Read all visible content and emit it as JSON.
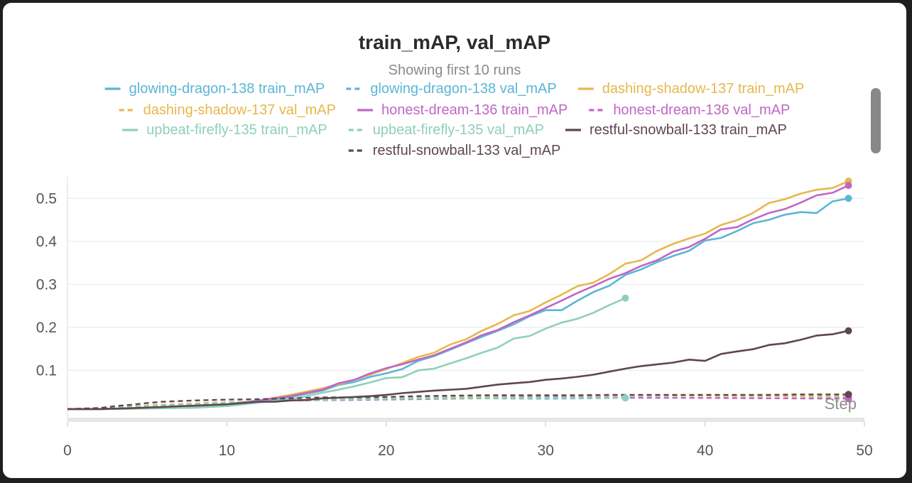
{
  "window": {
    "title": "train_mAP, val_mAP",
    "subtitle": "Showing first 10 runs"
  },
  "chart_data": {
    "type": "line",
    "title": "train_mAP, val_mAP",
    "subtitle": "Showing first 10 runs",
    "xlabel": "Step",
    "ylabel": "",
    "xlim": [
      0,
      50
    ],
    "ylim": [
      -0.01,
      0.55
    ],
    "x_ticks": [
      "0",
      "10",
      "20",
      "30",
      "40",
      "50"
    ],
    "y_ticks": [
      "0.1",
      "0.2",
      "0.3",
      "0.4",
      "0.5"
    ],
    "grid": true,
    "legend_position": "top",
    "series": [
      {
        "name": "glowing-dragon-138 train_mAP",
        "color": "#5bb6d6",
        "dash": false,
        "points": [
          [
            0,
            0.01
          ],
          [
            2,
            0.01
          ],
          [
            4,
            0.011
          ],
          [
            6,
            0.012
          ],
          [
            8,
            0.014
          ],
          [
            10,
            0.018
          ],
          [
            12,
            0.026
          ],
          [
            14,
            0.038
          ],
          [
            16,
            0.053
          ],
          [
            17,
            0.066
          ],
          [
            18,
            0.073
          ],
          [
            19,
            0.085
          ],
          [
            20,
            0.093
          ],
          [
            21,
            0.103
          ],
          [
            22,
            0.122
          ],
          [
            23,
            0.133
          ],
          [
            24,
            0.148
          ],
          [
            25,
            0.163
          ],
          [
            26,
            0.178
          ],
          [
            27,
            0.192
          ],
          [
            28,
            0.207
          ],
          [
            29,
            0.226
          ],
          [
            30,
            0.24
          ],
          [
            31,
            0.24
          ],
          [
            32,
            0.262
          ],
          [
            33,
            0.282
          ],
          [
            34,
            0.297
          ],
          [
            35,
            0.322
          ],
          [
            36,
            0.335
          ],
          [
            37,
            0.352
          ],
          [
            38,
            0.366
          ],
          [
            39,
            0.378
          ],
          [
            40,
            0.402
          ],
          [
            41,
            0.408
          ],
          [
            42,
            0.424
          ],
          [
            43,
            0.442
          ],
          [
            44,
            0.45
          ],
          [
            45,
            0.462
          ],
          [
            46,
            0.468
          ],
          [
            47,
            0.466
          ],
          [
            48,
            0.493
          ],
          [
            49,
            0.5
          ]
        ]
      },
      {
        "name": "glowing-dragon-138 val_mAP",
        "color": "#5bb6d6",
        "dash": true,
        "points": [
          [
            0,
            0.01
          ],
          [
            3,
            0.014
          ],
          [
            6,
            0.018
          ],
          [
            10,
            0.025
          ],
          [
            14,
            0.03
          ],
          [
            18,
            0.031
          ],
          [
            22,
            0.033
          ],
          [
            26,
            0.035
          ],
          [
            30,
            0.034
          ],
          [
            35,
            0.036
          ],
          [
            40,
            0.036
          ],
          [
            45,
            0.035
          ],
          [
            49,
            0.036
          ]
        ]
      },
      {
        "name": "dashing-shadow-137 train_mAP",
        "color": "#e6b84d",
        "dash": false,
        "points": [
          [
            0,
            0.01
          ],
          [
            2,
            0.01
          ],
          [
            4,
            0.012
          ],
          [
            6,
            0.014
          ],
          [
            8,
            0.016
          ],
          [
            10,
            0.02
          ],
          [
            12,
            0.03
          ],
          [
            14,
            0.043
          ],
          [
            16,
            0.058
          ],
          [
            17,
            0.068
          ],
          [
            18,
            0.078
          ],
          [
            19,
            0.09
          ],
          [
            20,
            0.103
          ],
          [
            21,
            0.117
          ],
          [
            22,
            0.131
          ],
          [
            23,
            0.141
          ],
          [
            24,
            0.16
          ],
          [
            25,
            0.172
          ],
          [
            26,
            0.192
          ],
          [
            27,
            0.208
          ],
          [
            28,
            0.228
          ],
          [
            29,
            0.238
          ],
          [
            30,
            0.258
          ],
          [
            31,
            0.276
          ],
          [
            32,
            0.296
          ],
          [
            33,
            0.304
          ],
          [
            34,
            0.324
          ],
          [
            35,
            0.348
          ],
          [
            36,
            0.356
          ],
          [
            37,
            0.378
          ],
          [
            38,
            0.394
          ],
          [
            39,
            0.407
          ],
          [
            40,
            0.418
          ],
          [
            41,
            0.438
          ],
          [
            42,
            0.449
          ],
          [
            43,
            0.466
          ],
          [
            44,
            0.489
          ],
          [
            45,
            0.498
          ],
          [
            46,
            0.511
          ],
          [
            47,
            0.52
          ],
          [
            48,
            0.524
          ],
          [
            49,
            0.54
          ]
        ]
      },
      {
        "name": "dashing-shadow-137 val_mAP",
        "color": "#e6b84d",
        "dash": true,
        "points": [
          [
            0,
            0.01
          ],
          [
            3,
            0.015
          ],
          [
            6,
            0.02
          ],
          [
            10,
            0.026
          ],
          [
            14,
            0.03
          ],
          [
            18,
            0.032
          ],
          [
            22,
            0.036
          ],
          [
            26,
            0.04
          ],
          [
            30,
            0.041
          ],
          [
            35,
            0.042
          ],
          [
            40,
            0.041
          ],
          [
            45,
            0.04
          ],
          [
            49,
            0.04
          ]
        ]
      },
      {
        "name": "honest-dream-136 train_mAP",
        "color": "#c066c5",
        "dash": false,
        "points": [
          [
            0,
            0.01
          ],
          [
            2,
            0.01
          ],
          [
            4,
            0.012
          ],
          [
            6,
            0.014
          ],
          [
            8,
            0.017
          ],
          [
            10,
            0.021
          ],
          [
            12,
            0.03
          ],
          [
            14,
            0.04
          ],
          [
            16,
            0.055
          ],
          [
            17,
            0.07
          ],
          [
            18,
            0.078
          ],
          [
            19,
            0.093
          ],
          [
            20,
            0.105
          ],
          [
            21,
            0.114
          ],
          [
            22,
            0.125
          ],
          [
            23,
            0.135
          ],
          [
            24,
            0.15
          ],
          [
            25,
            0.165
          ],
          [
            26,
            0.182
          ],
          [
            27,
            0.194
          ],
          [
            28,
            0.212
          ],
          [
            29,
            0.228
          ],
          [
            30,
            0.245
          ],
          [
            31,
            0.262
          ],
          [
            32,
            0.28
          ],
          [
            33,
            0.296
          ],
          [
            34,
            0.313
          ],
          [
            35,
            0.326
          ],
          [
            36,
            0.343
          ],
          [
            37,
            0.356
          ],
          [
            38,
            0.376
          ],
          [
            39,
            0.387
          ],
          [
            40,
            0.406
          ],
          [
            41,
            0.428
          ],
          [
            42,
            0.433
          ],
          [
            43,
            0.451
          ],
          [
            44,
            0.466
          ],
          [
            45,
            0.475
          ],
          [
            46,
            0.49
          ],
          [
            47,
            0.507
          ],
          [
            48,
            0.513
          ],
          [
            49,
            0.53
          ]
        ]
      },
      {
        "name": "honest-dream-136 val_mAP",
        "color": "#c066c5",
        "dash": true,
        "points": [
          [
            0,
            0.01
          ],
          [
            3,
            0.013
          ],
          [
            6,
            0.018
          ],
          [
            10,
            0.024
          ],
          [
            14,
            0.03
          ],
          [
            18,
            0.032
          ],
          [
            22,
            0.034
          ],
          [
            26,
            0.036
          ],
          [
            30,
            0.037
          ],
          [
            35,
            0.037
          ],
          [
            40,
            0.036
          ],
          [
            45,
            0.035
          ],
          [
            49,
            0.034
          ]
        ]
      },
      {
        "name": "upbeat-firefly-135 train_mAP",
        "color": "#8fd0b8",
        "dash": false,
        "points": [
          [
            0,
            0.01
          ],
          [
            2,
            0.01
          ],
          [
            4,
            0.011
          ],
          [
            6,
            0.012
          ],
          [
            8,
            0.013
          ],
          [
            10,
            0.017
          ],
          [
            12,
            0.025
          ],
          [
            14,
            0.033
          ],
          [
            15,
            0.04
          ],
          [
            16,
            0.048
          ],
          [
            17,
            0.055
          ],
          [
            18,
            0.063
          ],
          [
            19,
            0.072
          ],
          [
            20,
            0.082
          ],
          [
            21,
            0.084
          ],
          [
            22,
            0.1
          ],
          [
            23,
            0.104
          ],
          [
            24,
            0.116
          ],
          [
            25,
            0.128
          ],
          [
            26,
            0.141
          ],
          [
            27,
            0.153
          ],
          [
            28,
            0.174
          ],
          [
            29,
            0.18
          ],
          [
            30,
            0.197
          ],
          [
            31,
            0.211
          ],
          [
            32,
            0.22
          ],
          [
            33,
            0.234
          ],
          [
            34,
            0.252
          ],
          [
            35,
            0.268
          ]
        ]
      },
      {
        "name": "upbeat-firefly-135 val_mAP",
        "color": "#8fd0b8",
        "dash": true,
        "points": [
          [
            0,
            0.01
          ],
          [
            3,
            0.014
          ],
          [
            6,
            0.018
          ],
          [
            10,
            0.025
          ],
          [
            14,
            0.03
          ],
          [
            18,
            0.033
          ],
          [
            22,
            0.035
          ],
          [
            26,
            0.036
          ],
          [
            30,
            0.036
          ],
          [
            35,
            0.036
          ]
        ]
      },
      {
        "name": "restful-snowball-133 train_mAP",
        "color": "#5e4750",
        "dash": false,
        "points": [
          [
            0,
            0.01
          ],
          [
            2,
            0.01
          ],
          [
            4,
            0.012
          ],
          [
            6,
            0.015
          ],
          [
            8,
            0.018
          ],
          [
            10,
            0.021
          ],
          [
            12,
            0.027
          ],
          [
            13,
            0.027
          ],
          [
            14,
            0.03
          ],
          [
            15,
            0.031
          ],
          [
            16,
            0.035
          ],
          [
            18,
            0.038
          ],
          [
            19,
            0.04
          ],
          [
            20,
            0.043
          ],
          [
            21,
            0.047
          ],
          [
            22,
            0.05
          ],
          [
            23,
            0.053
          ],
          [
            24,
            0.055
          ],
          [
            25,
            0.057
          ],
          [
            26,
            0.062
          ],
          [
            27,
            0.067
          ],
          [
            28,
            0.07
          ],
          [
            29,
            0.073
          ],
          [
            30,
            0.078
          ],
          [
            31,
            0.081
          ],
          [
            32,
            0.085
          ],
          [
            33,
            0.09
          ],
          [
            34,
            0.097
          ],
          [
            35,
            0.104
          ],
          [
            36,
            0.11
          ],
          [
            37,
            0.114
          ],
          [
            38,
            0.118
          ],
          [
            39,
            0.125
          ],
          [
            40,
            0.122
          ],
          [
            41,
            0.138
          ],
          [
            42,
            0.144
          ],
          [
            43,
            0.149
          ],
          [
            44,
            0.159
          ],
          [
            45,
            0.163
          ],
          [
            46,
            0.171
          ],
          [
            47,
            0.181
          ],
          [
            48,
            0.184
          ],
          [
            49,
            0.192
          ]
        ]
      },
      {
        "name": "restful-snowball-133 val_mAP",
        "color": "#5e4750",
        "dash": true,
        "points": [
          [
            0,
            0.01
          ],
          [
            2,
            0.012
          ],
          [
            3,
            0.017
          ],
          [
            4,
            0.02
          ],
          [
            5,
            0.024
          ],
          [
            6,
            0.027
          ],
          [
            8,
            0.03
          ],
          [
            10,
            0.032
          ],
          [
            12,
            0.033
          ],
          [
            14,
            0.035
          ],
          [
            16,
            0.037
          ],
          [
            18,
            0.037
          ],
          [
            20,
            0.038
          ],
          [
            22,
            0.04
          ],
          [
            24,
            0.041
          ],
          [
            26,
            0.042
          ],
          [
            28,
            0.042
          ],
          [
            30,
            0.042
          ],
          [
            32,
            0.042
          ],
          [
            34,
            0.043
          ],
          [
            36,
            0.043
          ],
          [
            38,
            0.043
          ],
          [
            40,
            0.043
          ],
          [
            42,
            0.043
          ],
          [
            44,
            0.043
          ],
          [
            46,
            0.044
          ],
          [
            48,
            0.044
          ],
          [
            49,
            0.044
          ]
        ]
      }
    ]
  }
}
